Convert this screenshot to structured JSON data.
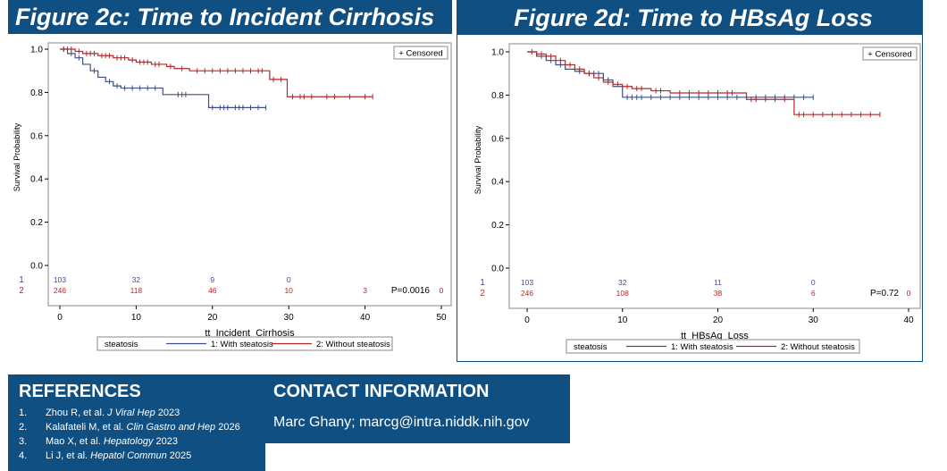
{
  "colors": {
    "header_bg": "#0f4f82",
    "series_1": "#3b4f8a",
    "series_2": "#b02a2a",
    "axis": "#000000"
  },
  "chart_data": [
    {
      "type": "line",
      "title": "Figure 2c: Time to Incident Cirrhosis",
      "xlabel": "tt_Incident_Cirrhosis",
      "ylabel": "Survival Probability",
      "xlim": [
        0,
        50
      ],
      "ylim": [
        0,
        1
      ],
      "x_ticks": [
        0,
        10,
        20,
        30,
        40,
        50
      ],
      "y_ticks": [
        0.0,
        0.2,
        0.4,
        0.6,
        0.8,
        1.0
      ],
      "grid": false,
      "censored_legend": "+ Censored",
      "p_value": "P=0.0016",
      "legend_title": "steatosis",
      "legend_placement": "bottom",
      "series": [
        {
          "name": "1: With steatosis",
          "steps": [
            [
              0,
              1.0
            ],
            [
              1,
              0.98
            ],
            [
              2,
              0.96
            ],
            [
              3,
              0.93
            ],
            [
              4,
              0.9
            ],
            [
              5,
              0.87
            ],
            [
              6,
              0.85
            ],
            [
              7,
              0.83
            ],
            [
              8,
              0.82
            ],
            [
              13,
              0.82
            ],
            [
              13.5,
              0.79
            ],
            [
              19,
              0.79
            ],
            [
              19.5,
              0.73
            ],
            [
              27,
              0.73
            ]
          ],
          "censored": [
            0.5,
            1.5,
            2.5,
            4.5,
            6.5,
            7.5,
            8.5,
            9.5,
            10.5,
            11.5,
            12.5,
            15.5,
            16,
            16.5,
            20,
            21,
            21.5,
            22,
            23,
            23.5,
            24,
            25,
            26,
            27
          ]
        },
        {
          "name": "2: Without steatosis",
          "steps": [
            [
              0,
              1.0
            ],
            [
              2,
              0.99
            ],
            [
              3,
              0.98
            ],
            [
              5,
              0.97
            ],
            [
              7,
              0.96
            ],
            [
              9,
              0.95
            ],
            [
              10,
              0.94
            ],
            [
              12,
              0.93
            ],
            [
              14,
              0.92
            ],
            [
              15,
              0.91
            ],
            [
              17,
              0.9
            ],
            [
              27,
              0.9
            ],
            [
              27.5,
              0.86
            ],
            [
              29.5,
              0.86
            ],
            [
              29.8,
              0.78
            ],
            [
              41,
              0.78
            ]
          ],
          "censored": [
            0.5,
            1,
            1.5,
            2.5,
            3.5,
            4,
            4.5,
            5.5,
            6,
            6.5,
            7.5,
            8,
            8.5,
            9.5,
            10.5,
            11,
            11.5,
            12.5,
            13,
            14.5,
            16,
            18,
            19,
            20,
            21,
            22,
            23,
            24,
            25,
            26,
            26.5,
            28,
            29,
            30.5,
            31.5,
            32,
            33,
            35,
            36,
            38,
            40,
            41
          ]
        }
      ],
      "risk_table": {
        "rows": [
          {
            "label": "1",
            "values": [
              "103",
              "32",
              "9",
              "0"
            ]
          },
          {
            "label": "2",
            "values": [
              "246",
              "118",
              "46",
              "10",
              "3",
              "0"
            ]
          }
        ]
      }
    },
    {
      "type": "line",
      "title": "Figure 2d: Time to HBsAg Loss",
      "xlabel": "tt_HBsAg_Loss",
      "ylabel": "Survival Probability",
      "xlim": [
        0,
        40
      ],
      "ylim": [
        0,
        1
      ],
      "x_ticks": [
        0,
        10,
        20,
        30,
        40
      ],
      "y_ticks": [
        0.0,
        0.2,
        0.4,
        0.6,
        0.8,
        1.0
      ],
      "grid": false,
      "censored_legend": "+ Censored",
      "p_value": "P=0.72",
      "legend_title": "steatosis",
      "legend_placement": "bottom",
      "series": [
        {
          "name": "1: With steatosis",
          "steps": [
            [
              0,
              1.0
            ],
            [
              1,
              0.98
            ],
            [
              2,
              0.96
            ],
            [
              3,
              0.94
            ],
            [
              4,
              0.92
            ],
            [
              5,
              0.91
            ],
            [
              6,
              0.9
            ],
            [
              8,
              0.87
            ],
            [
              9,
              0.84
            ],
            [
              10,
              0.79
            ],
            [
              30,
              0.79
            ]
          ],
          "censored": [
            1.5,
            2.5,
            3.5,
            5.5,
            6.5,
            7,
            7.5,
            8.5,
            10.5,
            11,
            11.5,
            12,
            13,
            14,
            15,
            16,
            17,
            18,
            19,
            20,
            21,
            22,
            23,
            24,
            25,
            26,
            27,
            28,
            29,
            30
          ]
        },
        {
          "name": "2: Without steatosis",
          "steps": [
            [
              0,
              1.0
            ],
            [
              1,
              0.99
            ],
            [
              2,
              0.98
            ],
            [
              3,
              0.96
            ],
            [
              4,
              0.94
            ],
            [
              5,
              0.92
            ],
            [
              6,
              0.9
            ],
            [
              7,
              0.88
            ],
            [
              8,
              0.86
            ],
            [
              9,
              0.85
            ],
            [
              10,
              0.84
            ],
            [
              11,
              0.83
            ],
            [
              13,
              0.82
            ],
            [
              15,
              0.81
            ],
            [
              22,
              0.81
            ],
            [
              23,
              0.78
            ],
            [
              27.5,
              0.78
            ],
            [
              28,
              0.71
            ],
            [
              37,
              0.71
            ]
          ],
          "censored": [
            0.5,
            1,
            1.5,
            2.5,
            3.5,
            4.5,
            5.5,
            6.5,
            7.5,
            8.5,
            9.5,
            10.5,
            11.5,
            12,
            13.5,
            14,
            16,
            17,
            18,
            19,
            20,
            21,
            21.5,
            23.5,
            24,
            25,
            26,
            27,
            28.5,
            29,
            30,
            31,
            32,
            33,
            34,
            35,
            36,
            37
          ]
        }
      ],
      "risk_table": {
        "rows": [
          {
            "label": "1",
            "values": [
              "103",
              "32",
              "11",
              "0"
            ]
          },
          {
            "label": "2",
            "values": [
              "246",
              "108",
              "38",
              "6",
              "0"
            ]
          }
        ]
      }
    }
  ],
  "references": {
    "title": "REFERENCES",
    "items": [
      {
        "num": "1.",
        "authors": "Zhou R, et al. ",
        "journal": "J Viral Hep",
        "year": " 2023"
      },
      {
        "num": "2.",
        "authors": "Kalafateli M, et al. ",
        "journal": "Clin Gastro and Hep",
        "year": " 2026"
      },
      {
        "num": "3.",
        "authors": "Mao X, et al. ",
        "journal": "Hepatology",
        "year": " 2023"
      },
      {
        "num": "4.",
        "authors": "Li J, et al. ",
        "journal": "Hepatol Commun",
        "year": " 2025"
      }
    ]
  },
  "contact": {
    "title": "CONTACT INFORMATION",
    "text": "Marc Ghany; marcg@intra.niddk.nih.gov"
  }
}
